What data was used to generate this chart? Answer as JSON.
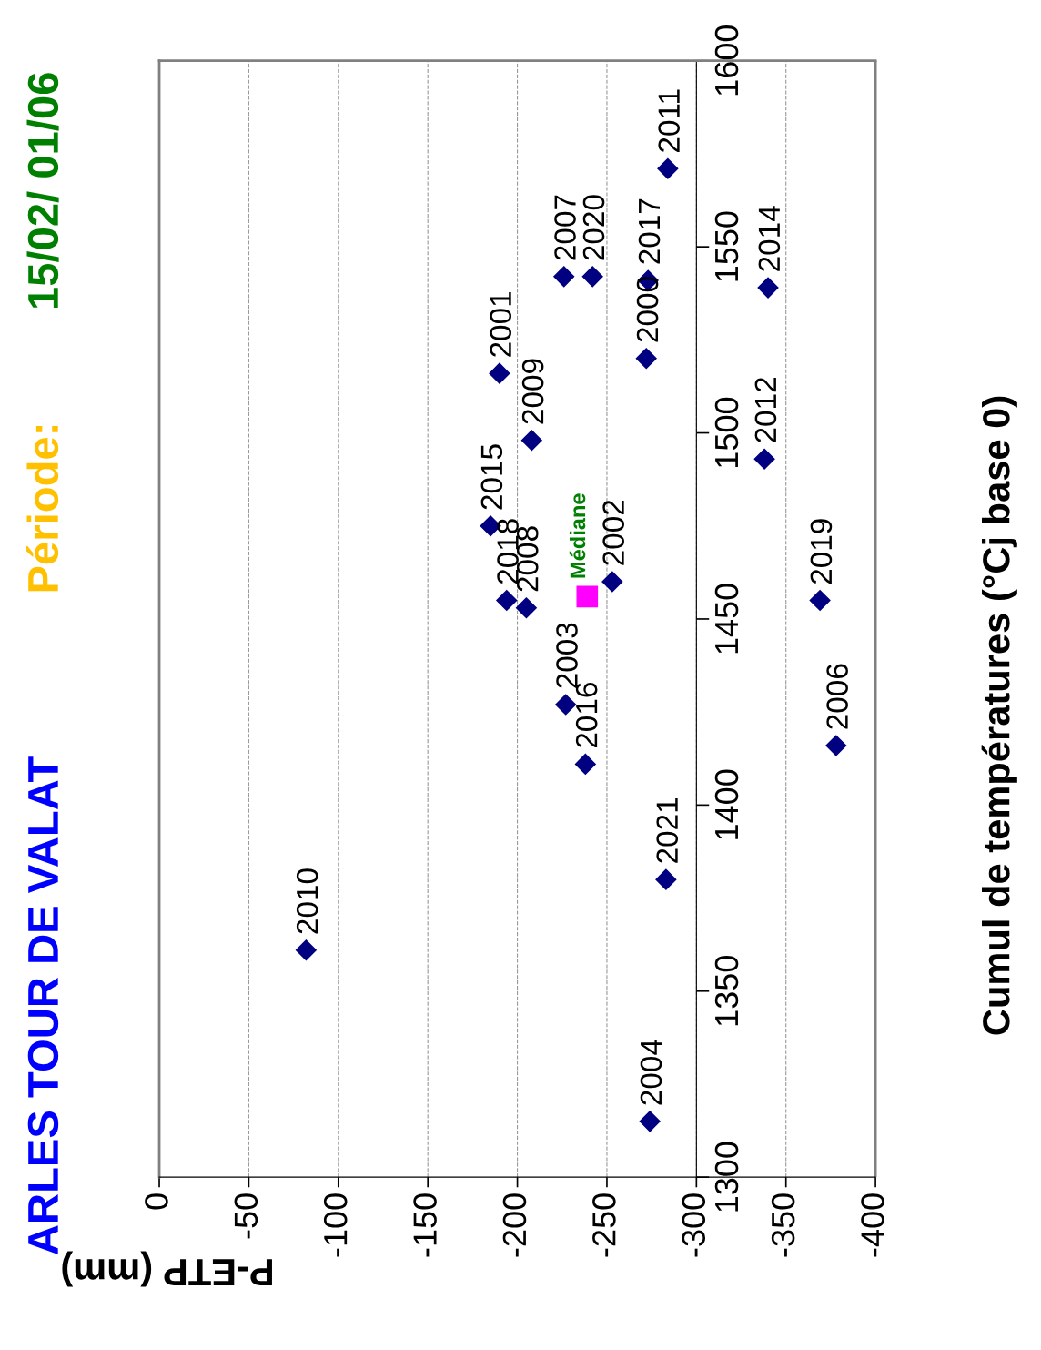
{
  "chart_data": {
    "type": "scatter",
    "title": "ARLES TOUR DE VALAT",
    "subtitle": "Période:",
    "xlabel": "P-ETP (mm)",
    "ylabel": "Cumul de températures (°Cj base 0)",
    "xlim": [
      0,
      -400
    ],
    "xticks": [
      0,
      -50,
      -100,
      -150,
      -200,
      -250,
      -300,
      -350,
      -400
    ],
    "ylim": [
      1300,
      1600
    ],
    "yticks": [
      1300,
      1350,
      1400,
      1450,
      1500,
      1550,
      1600
    ],
    "grid": "x",
    "marker": "diamond",
    "annotations": [
      "15/02/ 01/06",
      {
        "text": "2010",
        "x": -82,
        "y": 1361
      },
      {
        "text": "2004",
        "x": -274,
        "y": 1315
      },
      {
        "text": "2021",
        "x": -283,
        "y": 1380
      },
      {
        "text": "2016",
        "x": -238,
        "y": 1411
      },
      {
        "text": "2006",
        "x": -378,
        "y": 1416
      },
      {
        "text": "2003",
        "x": -227,
        "y": 1427
      },
      {
        "text": "2008",
        "x": -205,
        "y": 1453
      },
      {
        "text": "2018",
        "x": -194,
        "y": 1455
      },
      {
        "text": "2015",
        "x": -185,
        "y": 1475
      },
      {
        "text": "2009",
        "x": -208,
        "y": 1498
      },
      {
        "text": "2001",
        "x": -190,
        "y": 1516
      },
      {
        "text": "2007",
        "x": -226,
        "y": 1542
      },
      {
        "text": "2020",
        "x": -242,
        "y": 1542
      },
      {
        "text": "2002",
        "x": -253,
        "y": 1460
      },
      {
        "text": "2000",
        "x": -272,
        "y": 1520
      },
      {
        "text": "2017",
        "x": -273,
        "y": 1541
      },
      {
        "text": "2011",
        "x": -284,
        "y": 1571
      },
      {
        "text": "2012",
        "x": -338,
        "y": 1493
      },
      {
        "text": "2014",
        "x": -340,
        "y": 1539
      },
      {
        "text": "2019",
        "x": -369,
        "y": 1455
      }
    ],
    "series": [
      {
        "color": "#000080",
        "x": [
          -82,
          -274,
          -283,
          -238,
          -378,
          -227,
          -205,
          -194,
          -185,
          -208,
          -190,
          -226,
          -242,
          -253,
          -272,
          -273,
          -284,
          -338,
          -340,
          -369
        ],
        "values": [
          1361,
          1315,
          1380,
          1411,
          1416,
          1427,
          1453,
          1455,
          1475,
          1498,
          1516,
          1542,
          1542,
          1460,
          1520,
          1541,
          1571,
          1493,
          1539,
          1455
        ]
      },
      {
        "name": "Médiane",
        "color": "#ff00ff",
        "marker": "square",
        "x": [
          -239
        ],
        "values": [
          1456
        ]
      }
    ]
  }
}
